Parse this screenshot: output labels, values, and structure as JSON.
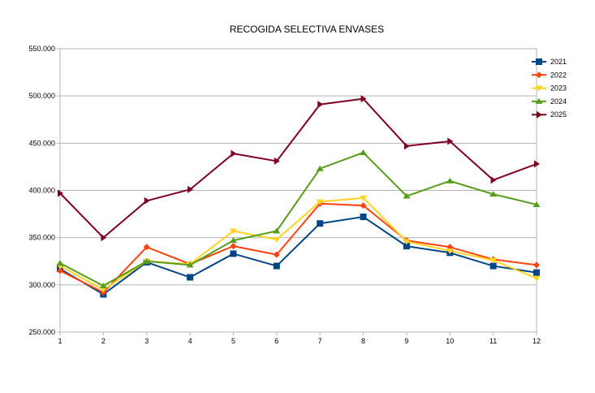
{
  "chart_data": {
    "type": "line",
    "title": "RECOGIDA SELECTIVA ENVASES",
    "xlabel": "",
    "ylabel": "",
    "x": [
      1,
      2,
      3,
      4,
      5,
      6,
      7,
      8,
      9,
      10,
      11,
      12
    ],
    "x_tick_labels": [
      "1",
      "2",
      "3",
      "4",
      "5",
      "6",
      "7",
      "8",
      "9",
      "10",
      "11",
      "12"
    ],
    "ylim": [
      250000,
      550000
    ],
    "y_ticks": [
      250000,
      300000,
      350000,
      400000,
      450000,
      500000,
      550000
    ],
    "y_tick_labels": [
      "250.000",
      "300.000",
      "350.000",
      "400.000",
      "450.000",
      "500.000",
      "550.000"
    ],
    "grid": "horizontal",
    "legend_position": "right",
    "series": [
      {
        "name": "2021",
        "color": "#004586",
        "marker": "square",
        "values": [
          317000,
          290000,
          324000,
          308000,
          333000,
          320000,
          365000,
          372000,
          341000,
          334000,
          320000,
          313000
        ]
      },
      {
        "name": "2022",
        "color": "#ff420e",
        "marker": "diamond",
        "values": [
          315000,
          292000,
          340000,
          322000,
          341000,
          332000,
          386000,
          384000,
          347000,
          340000,
          327000,
          321000
        ]
      },
      {
        "name": "2023",
        "color": "#ffd320",
        "marker": "triangle-down",
        "values": [
          320000,
          295000,
          325000,
          322000,
          357000,
          348000,
          388000,
          392000,
          346000,
          336000,
          326000,
          307000
        ]
      },
      {
        "name": "2024",
        "color": "#579d1c",
        "marker": "triangle-up",
        "values": [
          323000,
          299000,
          325000,
          321000,
          347000,
          357000,
          423000,
          440000,
          394000,
          410000,
          396000,
          385000
        ]
      },
      {
        "name": "2025",
        "color": "#7e0021",
        "marker": "triangle-right",
        "values": [
          397000,
          350000,
          389000,
          401000,
          439000,
          431000,
          491000,
          497000,
          447000,
          452000,
          411000,
          428000
        ]
      }
    ]
  }
}
